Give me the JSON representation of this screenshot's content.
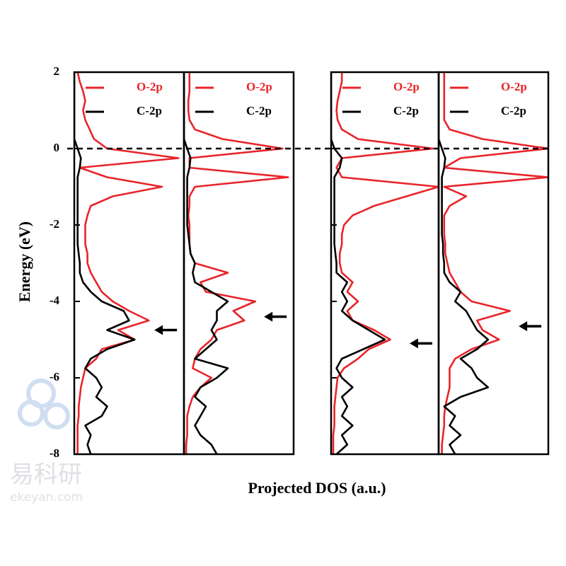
{
  "chart_data": {
    "type": "line",
    "ylabel": "Energy (eV)",
    "xlabel": "Projected DOS (a.u.)",
    "ylim": [
      -8,
      2
    ],
    "yticks": [
      -8,
      -6,
      -4,
      -2,
      0,
      2
    ],
    "xlim": [
      0,
      1
    ],
    "reference_line": 0,
    "y": [
      -8,
      -7.75,
      -7.5,
      -7.25,
      -7,
      -6.75,
      -6.5,
      -6.25,
      -6,
      -5.75,
      -5.5,
      -5.25,
      -5,
      -4.75,
      -4.5,
      -4.25,
      -4,
      -3.75,
      -3.5,
      -3.25,
      -3,
      -2.75,
      -2.5,
      -2.25,
      -2,
      -1.75,
      -1.5,
      -1.25,
      -1,
      -0.75,
      -0.5,
      -0.25,
      0,
      0.25,
      0.5,
      0.75,
      1,
      1.25,
      1.5,
      1.75,
      2
    ],
    "panels": [
      {
        "arrow": -4.75,
        "series": [
          {
            "name": "O-2p",
            "color": "#e8242a",
            "values": [
              0.03,
              0.03,
              0.03,
              0.03,
              0.04,
              0.04,
              0.05,
              0.06,
              0.08,
              0.1,
              0.2,
              0.25,
              0.55,
              0.4,
              0.68,
              0.5,
              0.35,
              0.25,
              0.2,
              0.15,
              0.12,
              0.12,
              0.1,
              0.1,
              0.1,
              0.12,
              0.15,
              0.35,
              0.8,
              0.3,
              0.05,
              0.95,
              0.3,
              0.18,
              0.14,
              0.1,
              0.08,
              0.1,
              0.08,
              0.05,
              0.03
            ]
          },
          {
            "name": "C-2p",
            "color": "#000000",
            "values": [
              0.15,
              0.12,
              0.15,
              0.1,
              0.25,
              0.3,
              0.2,
              0.25,
              0.2,
              0.1,
              0.15,
              0.3,
              0.55,
              0.3,
              0.5,
              0.45,
              0.25,
              0.15,
              0.08,
              0.05,
              0.05,
              0.04,
              0.03,
              0.03,
              0.03,
              0.03,
              0.03,
              0.03,
              0.03,
              0.03,
              0.05,
              0.06,
              0.03,
              0,
              0,
              0,
              0,
              0,
              0,
              0,
              0
            ]
          }
        ]
      },
      {
        "arrow": -4.4,
        "series": [
          {
            "name": "O-2p",
            "color": "#e8242a",
            "values": [
              0.02,
              0.02,
              0.03,
              0.03,
              0.03,
              0.05,
              0.08,
              0.15,
              0.25,
              0.08,
              0.1,
              0.15,
              0.25,
              0.3,
              0.55,
              0.45,
              0.65,
              0.2,
              0.15,
              0.4,
              0.1,
              0.06,
              0.05,
              0.05,
              0.05,
              0.04,
              0.05,
              0.05,
              0.1,
              0.95,
              0.05,
              0.05,
              0.9,
              0.35,
              0.1,
              0.05,
              0.04,
              0.04,
              0.05,
              0.05,
              0.05
            ]
          },
          {
            "name": "C-2p",
            "color": "#000000",
            "values": [
              0.3,
              0.25,
              0.15,
              0.1,
              0.15,
              0.2,
              0.1,
              0.15,
              0.3,
              0.4,
              0.1,
              0.2,
              0.3,
              0.25,
              0.3,
              0.3,
              0.4,
              0.25,
              0.1,
              0.08,
              0.1,
              0.06,
              0.05,
              0.04,
              0.03,
              0.03,
              0.03,
              0.03,
              0.03,
              0.03,
              0.05,
              0.06,
              0.03,
              0,
              0,
              0,
              0,
              0,
              0,
              0,
              0
            ]
          }
        ]
      },
      {
        "arrow": -5.1,
        "series": [
          {
            "name": "O-2p",
            "color": "#e8242a",
            "values": [
              0.02,
              0.02,
              0.02,
              0.03,
              0.03,
              0.03,
              0.04,
              0.05,
              0.06,
              0.12,
              0.25,
              0.35,
              0.55,
              0.4,
              0.2,
              0.15,
              0.25,
              0.15,
              0.2,
              0.1,
              0.08,
              0.08,
              0.1,
              0.1,
              0.12,
              0.2,
              0.4,
              0.7,
              1.0,
              0.1,
              0.05,
              0.1,
              0.95,
              0.25,
              0.1,
              0.06,
              0.05,
              0.06,
              0.08,
              0.1,
              0.1
            ]
          },
          {
            "name": "C-2p",
            "color": "#000000",
            "values": [
              0.05,
              0.15,
              0.1,
              0.2,
              0.1,
              0.15,
              0.1,
              0.2,
              0.1,
              0.05,
              0.1,
              0.3,
              0.5,
              0.35,
              0.2,
              0.1,
              0.15,
              0.1,
              0.15,
              0.05,
              0.05,
              0.04,
              0.03,
              0.03,
              0.03,
              0.03,
              0.03,
              0.03,
              0.03,
              0.03,
              0.08,
              0.1,
              0.03,
              0,
              0,
              0,
              0,
              0,
              0,
              0,
              0
            ]
          }
        ]
      },
      {
        "arrow": -4.65,
        "series": [
          {
            "name": "O-2p",
            "color": "#e8242a",
            "values": [
              0.03,
              0.03,
              0.04,
              0.05,
              0.05,
              0.06,
              0.08,
              0.1,
              0.1,
              0.1,
              0.15,
              0.3,
              0.55,
              0.4,
              0.35,
              0.65,
              0.3,
              0.2,
              0.15,
              0.1,
              0.08,
              0.06,
              0.06,
              0.05,
              0.05,
              0.05,
              0.1,
              0.25,
              0.05,
              1.0,
              0.05,
              0.2,
              1.0,
              0.4,
              0.1,
              0.05,
              0.05,
              0.05,
              0.05,
              0.05,
              0.05
            ]
          },
          {
            "name": "C-2p",
            "color": "#000000",
            "values": [
              0.15,
              0.1,
              0.2,
              0.1,
              0.15,
              0.05,
              0.2,
              0.45,
              0.35,
              0.3,
              0.2,
              0.35,
              0.45,
              0.35,
              0.3,
              0.25,
              0.15,
              0.2,
              0.1,
              0.05,
              0.05,
              0.04,
              0.04,
              0.03,
              0.03,
              0.03,
              0.03,
              0.03,
              0.03,
              0.03,
              0.05,
              0.06,
              0.03,
              0,
              0,
              0,
              0,
              0,
              0,
              0,
              0
            ]
          }
        ]
      }
    ]
  },
  "watermark": {
    "text": "易科研",
    "site": "ekeyan.com"
  }
}
